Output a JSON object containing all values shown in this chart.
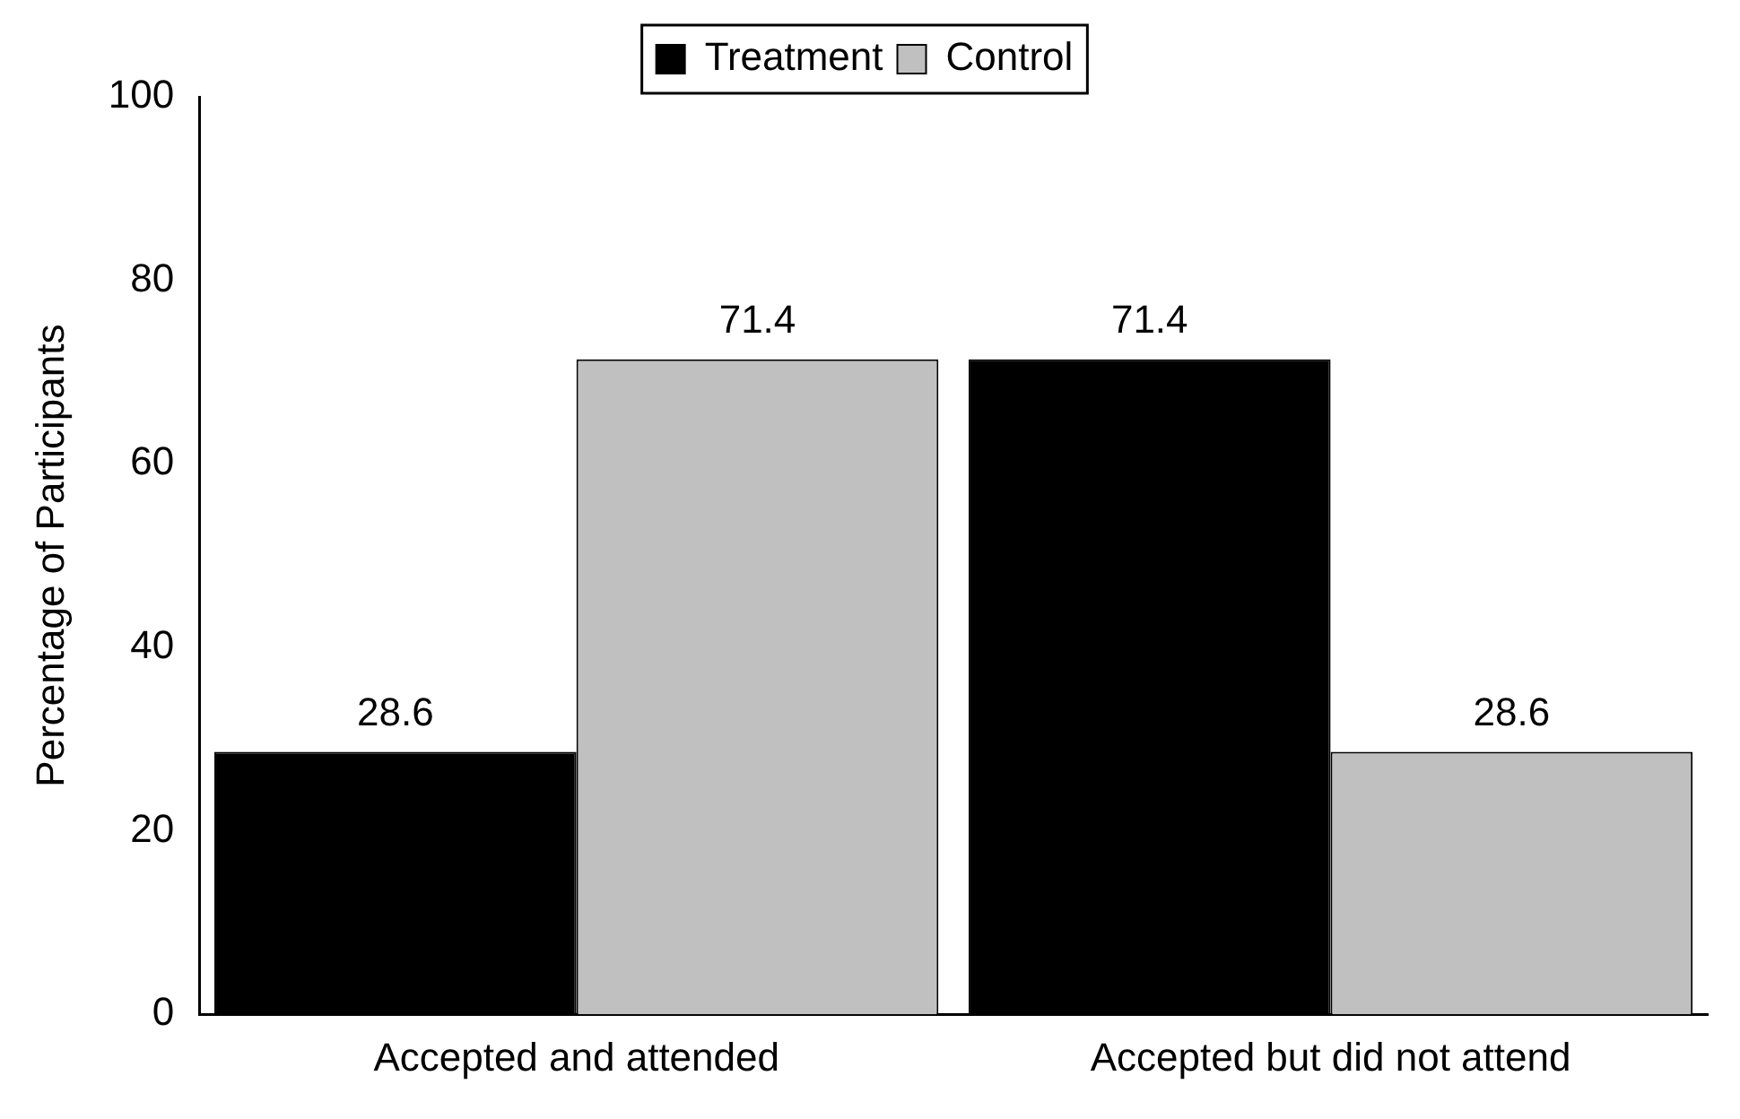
{
  "chart_data": {
    "type": "bar",
    "ylabel": "Percentage of Participants",
    "categories": [
      "Accepted and attended",
      "Accepted but did not attend"
    ],
    "series": [
      {
        "name": "Treatment",
        "color": "#000000",
        "values": [
          28.6,
          71.4
        ]
      },
      {
        "name": "Control",
        "color": "#c0c0c0",
        "values": [
          71.4,
          28.6
        ]
      }
    ],
    "ylim": [
      0,
      100
    ],
    "yticks": [
      0,
      20,
      40,
      60,
      80,
      100
    ],
    "grid": false,
    "legend": "top",
    "data_labels": true
  }
}
